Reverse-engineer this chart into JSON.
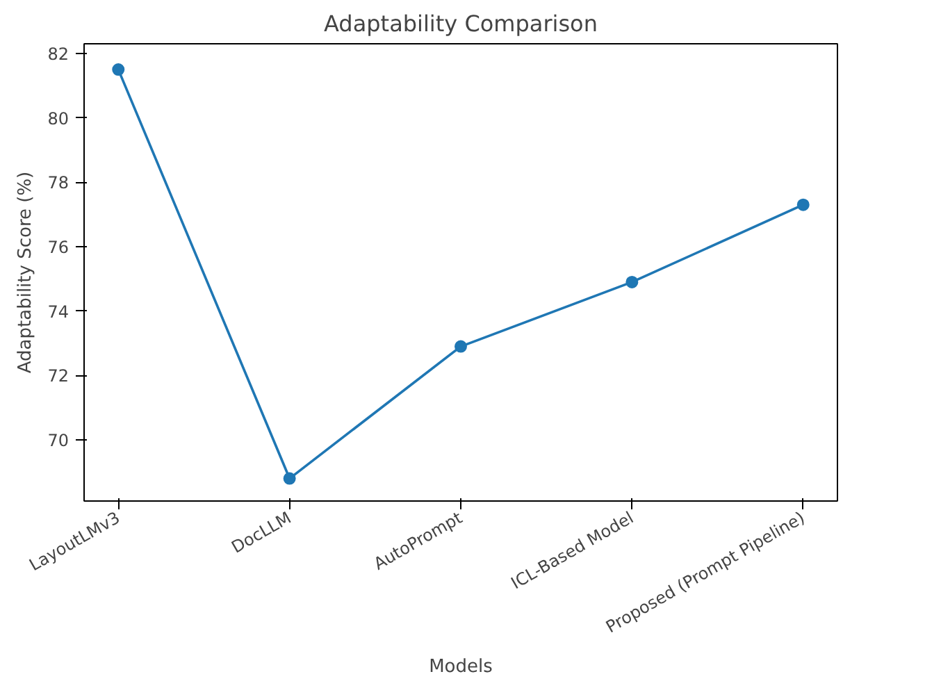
{
  "chart_data": {
    "type": "line",
    "title": "Adaptability Comparison",
    "xlabel": "Models",
    "ylabel": "Adaptability Score (%)",
    "categories": [
      "LayoutLMv3",
      "DocLLM",
      "AutoPrompt",
      "ICL-Based Model",
      "Proposed (Prompt Pipeline)"
    ],
    "series": [
      {
        "color": "#1f77b4",
        "values": [
          81.5,
          68.8,
          72.9,
          74.9,
          77.3
        ]
      }
    ],
    "ylim": [
      68.1,
      82.3
    ],
    "yticks": [
      70,
      72,
      74,
      76,
      78,
      80,
      82
    ],
    "grid": false,
    "marker": "circle",
    "line_style": "solid"
  }
}
